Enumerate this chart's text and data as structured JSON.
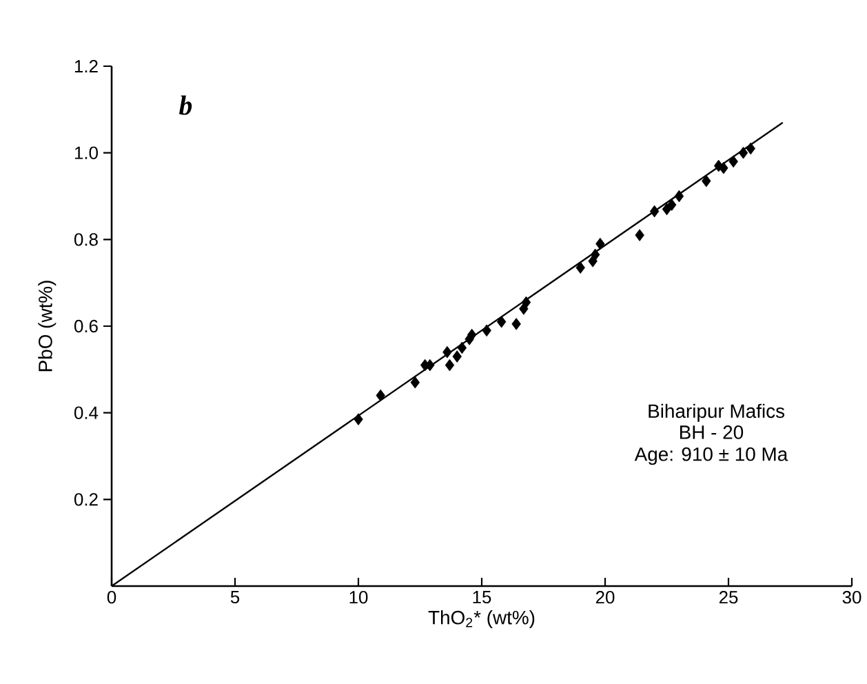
{
  "chart_data": {
    "type": "scatter",
    "xlabel": "ThO$_{2}$* (wt%)",
    "ylabel": "PbO (wt%)",
    "xlim": [
      0,
      30
    ],
    "ylim": [
      0,
      1.2
    ],
    "xticks": [
      0,
      5,
      10,
      15,
      20,
      25,
      30
    ],
    "yticks": [
      {
        "value": 0.2,
        "label": "0.2"
      },
      {
        "value": 0.4,
        "label": "0.4"
      },
      {
        "value": 0.6,
        "label": "0.6"
      },
      {
        "value": 0.8,
        "label": "0.8"
      },
      {
        "value": 1.0,
        "label": "1.0"
      },
      {
        "value": 1.2,
        "label": "1.2"
      }
    ],
    "grid": false,
    "marker": "diamond",
    "series": [
      {
        "color": "#000000",
        "x": [
          10.0,
          10.9,
          12.3,
          12.7,
          12.9,
          13.6,
          13.7,
          14.0,
          14.2,
          14.5,
          14.6,
          15.2,
          15.8,
          16.4,
          16.7,
          16.8,
          19.0,
          19.5,
          19.6,
          19.8,
          21.4,
          22.0,
          22.5,
          22.7,
          23.0,
          24.1,
          24.6,
          24.8,
          25.2,
          25.6,
          25.9
        ],
        "values": [
          0.385,
          0.44,
          0.47,
          0.51,
          0.51,
          0.54,
          0.51,
          0.53,
          0.55,
          0.57,
          0.58,
          0.59,
          0.61,
          0.605,
          0.64,
          0.655,
          0.735,
          0.75,
          0.765,
          0.79,
          0.81,
          0.865,
          0.87,
          0.88,
          0.9,
          0.935,
          0.97,
          0.965,
          0.98,
          1.0,
          1.01
        ]
      },
      {
        "type": "line",
        "color": "#000000",
        "marker": "none",
        "line_style": "solid",
        "x": [
          0,
          27.2
        ],
        "values": [
          0,
          1.07
        ]
      }
    ],
    "annotations": [
      "b",
      "Biharipur Mafics",
      "BH - 20",
      "Age: 910 ± 10 Ma"
    ]
  }
}
